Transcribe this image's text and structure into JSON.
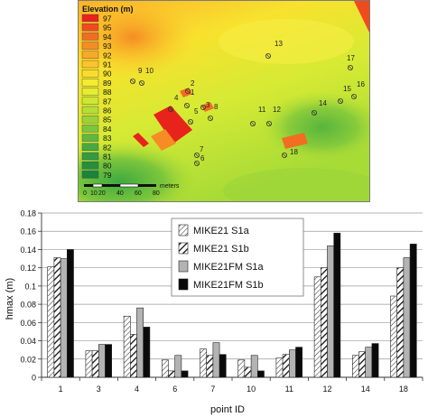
{
  "map": {
    "legend_title": "Elevation (m)",
    "legend_levels": [
      {
        "label": "97",
        "color": "#e8231c"
      },
      {
        "label": "95",
        "color": "#ef4b1f"
      },
      {
        "label": "94",
        "color": "#f26d22"
      },
      {
        "label": "93",
        "color": "#f58c25"
      },
      {
        "label": "92",
        "color": "#f8a928"
      },
      {
        "label": "91",
        "color": "#fbc42a"
      },
      {
        "label": "90",
        "color": "#fbdc2c"
      },
      {
        "label": "89",
        "color": "#f4ec2e"
      },
      {
        "label": "88",
        "color": "#e2ee30"
      },
      {
        "label": "87",
        "color": "#cce834"
      },
      {
        "label": "86",
        "color": "#b3df36"
      },
      {
        "label": "85",
        "color": "#98d33a"
      },
      {
        "label": "84",
        "color": "#7cc63c"
      },
      {
        "label": "83",
        "color": "#60b83e"
      },
      {
        "label": "82",
        "color": "#47aa40"
      },
      {
        "label": "81",
        "color": "#349c3f"
      },
      {
        "label": "80",
        "color": "#268f3e"
      },
      {
        "label": "79",
        "color": "#1c823c"
      }
    ],
    "scale_ticks": [
      "0",
      "10",
      "20",
      "40",
      "60",
      "80"
    ],
    "scale_unit": "meters",
    "points": [
      "1",
      "2",
      "3",
      "4",
      "5",
      "6",
      "7",
      "8",
      "9",
      "10",
      "11",
      "12",
      "13",
      "14",
      "15",
      "16",
      "17",
      "18"
    ]
  },
  "chart_data": {
    "type": "bar",
    "xlabel": "point ID",
    "ylabel": "hmax (m)",
    "ylim": [
      0,
      0.18
    ],
    "yticks": [
      "0",
      "0.02",
      "0.04",
      "0.06",
      "0.08",
      "0.1",
      "0.12",
      "0.14",
      "0.16",
      "0.18"
    ],
    "legend_position": "top-center",
    "categories": [
      "1",
      "3",
      "4",
      "6",
      "7",
      "10",
      "11",
      "12",
      "14",
      "18"
    ],
    "series": [
      {
        "name": "MIKE21 S1a",
        "pattern": "light-diagonal-hatch",
        "values": [
          0.121,
          0.029,
          0.067,
          0.019,
          0.031,
          0.019,
          0.021,
          0.11,
          0.024,
          0.089
        ]
      },
      {
        "name": "MIKE21 S1b",
        "pattern": "bold-diagonal-hatch",
        "values": [
          0.131,
          0.029,
          0.047,
          0.007,
          0.024,
          0.011,
          0.025,
          0.12,
          0.028,
          0.12
        ]
      },
      {
        "name": "MIKE21FM S1a",
        "color": "#b3b3b3",
        "values": [
          0.13,
          0.036,
          0.076,
          0.024,
          0.038,
          0.024,
          0.03,
          0.144,
          0.033,
          0.131
        ]
      },
      {
        "name": "MIKE21FM S1b",
        "color": "#0a0a0a",
        "values": [
          0.14,
          0.036,
          0.055,
          0.007,
          0.025,
          0.007,
          0.033,
          0.158,
          0.037,
          0.146
        ]
      }
    ]
  }
}
